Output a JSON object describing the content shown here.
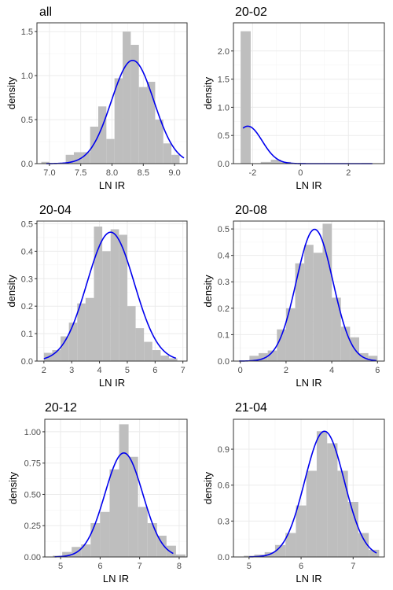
{
  "colors": {
    "bar_fill": "#bebebe",
    "curve": "#0000ee",
    "grid_major": "#ebebeb",
    "grid_minor": "#f4f4f4",
    "panel_border": "#333333",
    "tick_text": "#4d4d4d"
  },
  "chart_data": [
    {
      "type": "bar",
      "title": "all",
      "xlabel": "LN IR",
      "ylabel": "density",
      "xlim": [
        6.8,
        9.2
      ],
      "ylim": [
        0,
        1.6
      ],
      "xticks": [
        7.0,
        7.5,
        8.0,
        8.5,
        9.0
      ],
      "xtick_labels": [
        "7.0",
        "7.5",
        "8.0",
        "8.5",
        "9.0"
      ],
      "yticks": [
        0.0,
        0.5,
        1.0,
        1.5
      ],
      "ytick_labels": [
        "0.0",
        "0.5",
        "1.0",
        "1.5"
      ],
      "bins": [
        {
          "x0": 6.87,
          "x1": 7.0,
          "y": 0.02
        },
        {
          "x0": 7.0,
          "x1": 7.13,
          "y": 0.0
        },
        {
          "x0": 7.13,
          "x1": 7.26,
          "y": 0.0
        },
        {
          "x0": 7.26,
          "x1": 7.39,
          "y": 0.1
        },
        {
          "x0": 7.39,
          "x1": 7.52,
          "y": 0.13
        },
        {
          "x0": 7.52,
          "x1": 7.65,
          "y": 0.13
        },
        {
          "x0": 7.65,
          "x1": 7.78,
          "y": 0.42
        },
        {
          "x0": 7.78,
          "x1": 7.91,
          "y": 0.65
        },
        {
          "x0": 7.91,
          "x1": 8.04,
          "y": 0.28
        },
        {
          "x0": 8.04,
          "x1": 8.17,
          "y": 0.97
        },
        {
          "x0": 8.17,
          "x1": 8.3,
          "y": 1.5
        },
        {
          "x0": 8.3,
          "x1": 8.43,
          "y": 1.35
        },
        {
          "x0": 8.43,
          "x1": 8.56,
          "y": 0.87
        },
        {
          "x0": 8.56,
          "x1": 8.69,
          "y": 0.93
        },
        {
          "x0": 8.69,
          "x1": 8.82,
          "y": 0.5
        },
        {
          "x0": 8.82,
          "x1": 8.95,
          "y": 0.23
        },
        {
          "x0": 8.95,
          "x1": 9.08,
          "y": 0.1
        }
      ],
      "density_curve": {
        "mean": 8.33,
        "sd": 0.34,
        "from": 6.95,
        "to": 9.15
      }
    },
    {
      "type": "bar",
      "title": "20-02",
      "xlabel": "LN IR",
      "ylabel": "density",
      "xlim": [
        -2.8,
        3.5
      ],
      "ylim": [
        0,
        2.5
      ],
      "xticks": [
        -2,
        0,
        2
      ],
      "xtick_labels": [
        "-2",
        "0",
        "2"
      ],
      "yticks": [
        0.0,
        0.5,
        1.0,
        1.5,
        2.0
      ],
      "ytick_labels": [
        "0.0",
        "0.5",
        "1.0",
        "1.5",
        "2.0"
      ],
      "bins": [
        {
          "x0": -2.5,
          "x1": -2.08,
          "y": 2.35
        },
        {
          "x0": -2.08,
          "x1": -1.66,
          "y": 0.0
        },
        {
          "x0": -1.66,
          "x1": -1.24,
          "y": 0.03
        },
        {
          "x0": -1.24,
          "x1": -0.82,
          "y": 0.07
        },
        {
          "x0": -0.82,
          "x1": -0.4,
          "y": 0.03
        },
        {
          "x0": -0.4,
          "x1": 0.02,
          "y": 0.0
        },
        {
          "x0": 0.02,
          "x1": 0.44,
          "y": 0.0
        },
        {
          "x0": 0.44,
          "x1": 0.86,
          "y": 0.0
        },
        {
          "x0": 0.86,
          "x1": 1.28,
          "y": 0.0
        },
        {
          "x0": 1.28,
          "x1": 1.7,
          "y": 0.0
        },
        {
          "x0": 1.7,
          "x1": 2.12,
          "y": 0.0
        },
        {
          "x0": 2.12,
          "x1": 2.54,
          "y": 0.0
        },
        {
          "x0": 2.54,
          "x1": 2.96,
          "y": 0.01
        }
      ],
      "density_curve": {
        "mean": -2.2,
        "sd": 0.6,
        "from": -2.4,
        "to": 3.0
      }
    },
    {
      "type": "bar",
      "title": "20-04",
      "xlabel": "LN IR",
      "ylabel": "density",
      "xlim": [
        1.75,
        7.15
      ],
      "ylim": [
        0,
        0.51
      ],
      "xticks": [
        2,
        3,
        4,
        5,
        6,
        7
      ],
      "xtick_labels": [
        "2",
        "3",
        "4",
        "5",
        "6",
        "7"
      ],
      "yticks": [
        0.0,
        0.1,
        0.2,
        0.3,
        0.4,
        0.5
      ],
      "ytick_labels": [
        "0.0",
        "0.1",
        "0.2",
        "0.3",
        "0.4",
        "0.5"
      ],
      "bins": [
        {
          "x0": 2.0,
          "x1": 2.3,
          "y": 0.03
        },
        {
          "x0": 2.3,
          "x1": 2.6,
          "y": 0.04
        },
        {
          "x0": 2.6,
          "x1": 2.9,
          "y": 0.09
        },
        {
          "x0": 2.9,
          "x1": 3.2,
          "y": 0.14
        },
        {
          "x0": 3.2,
          "x1": 3.5,
          "y": 0.21
        },
        {
          "x0": 3.5,
          "x1": 3.8,
          "y": 0.23
        },
        {
          "x0": 3.8,
          "x1": 4.1,
          "y": 0.49
        },
        {
          "x0": 4.1,
          "x1": 4.4,
          "y": 0.4
        },
        {
          "x0": 4.4,
          "x1": 4.7,
          "y": 0.48
        },
        {
          "x0": 4.7,
          "x1": 5.0,
          "y": 0.46
        },
        {
          "x0": 5.0,
          "x1": 5.3,
          "y": 0.2
        },
        {
          "x0": 5.3,
          "x1": 5.6,
          "y": 0.12
        },
        {
          "x0": 5.6,
          "x1": 5.9,
          "y": 0.07
        },
        {
          "x0": 5.9,
          "x1": 6.2,
          "y": 0.04
        },
        {
          "x0": 6.2,
          "x1": 6.5,
          "y": 0.02
        },
        {
          "x0": 6.5,
          "x1": 6.8,
          "y": 0.01
        }
      ],
      "density_curve": {
        "mean": 4.4,
        "sd": 0.85,
        "from": 2.0,
        "to": 6.75
      }
    },
    {
      "type": "bar",
      "title": "20-08",
      "xlabel": "LN IR",
      "ylabel": "density",
      "xlim": [
        -0.3,
        6.3
      ],
      "ylim": [
        0,
        0.53
      ],
      "xticks": [
        0,
        2,
        4,
        6
      ],
      "xtick_labels": [
        "0",
        "2",
        "4",
        "6"
      ],
      "yticks": [
        0.0,
        0.1,
        0.2,
        0.3,
        0.4,
        0.5
      ],
      "ytick_labels": [
        "0.0",
        "0.1",
        "0.2",
        "0.3",
        "0.4",
        "0.5"
      ],
      "bins": [
        {
          "x0": 0.0,
          "x1": 0.4,
          "y": 0.0
        },
        {
          "x0": 0.4,
          "x1": 0.8,
          "y": 0.02
        },
        {
          "x0": 0.8,
          "x1": 1.2,
          "y": 0.03
        },
        {
          "x0": 1.2,
          "x1": 1.6,
          "y": 0.04
        },
        {
          "x0": 1.6,
          "x1": 2.0,
          "y": 0.12
        },
        {
          "x0": 2.0,
          "x1": 2.4,
          "y": 0.2
        },
        {
          "x0": 2.4,
          "x1": 2.8,
          "y": 0.37
        },
        {
          "x0": 2.8,
          "x1": 3.2,
          "y": 0.44
        },
        {
          "x0": 3.2,
          "x1": 3.6,
          "y": 0.41
        },
        {
          "x0": 3.6,
          "x1": 4.0,
          "y": 0.52
        },
        {
          "x0": 4.0,
          "x1": 4.4,
          "y": 0.24
        },
        {
          "x0": 4.4,
          "x1": 4.8,
          "y": 0.13
        },
        {
          "x0": 4.8,
          "x1": 5.2,
          "y": 0.09
        },
        {
          "x0": 5.2,
          "x1": 5.6,
          "y": 0.03
        },
        {
          "x0": 5.6,
          "x1": 6.0,
          "y": 0.02
        }
      ],
      "density_curve": {
        "mean": 3.25,
        "sd": 0.8,
        "from": -0.05,
        "to": 5.95
      }
    },
    {
      "type": "bar",
      "title": "20-12",
      "xlabel": "LN IR",
      "ylabel": "density",
      "xlim": [
        4.6,
        8.2
      ],
      "ylim": [
        0,
        1.1
      ],
      "xticks": [
        5,
        6,
        7,
        8
      ],
      "xtick_labels": [
        "5",
        "6",
        "7",
        "8"
      ],
      "yticks": [
        0.0,
        0.25,
        0.5,
        0.75,
        1.0
      ],
      "ytick_labels": [
        "0.00",
        "0.25",
        "0.50",
        "0.75",
        "1.00"
      ],
      "bins": [
        {
          "x0": 4.8,
          "x1": 5.04,
          "y": 0.01
        },
        {
          "x0": 5.04,
          "x1": 5.28,
          "y": 0.04
        },
        {
          "x0": 5.28,
          "x1": 5.52,
          "y": 0.08
        },
        {
          "x0": 5.52,
          "x1": 5.76,
          "y": 0.1
        },
        {
          "x0": 5.76,
          "x1": 6.0,
          "y": 0.27
        },
        {
          "x0": 6.0,
          "x1": 6.24,
          "y": 0.36
        },
        {
          "x0": 6.24,
          "x1": 6.48,
          "y": 0.7
        },
        {
          "x0": 6.48,
          "x1": 6.72,
          "y": 1.06
        },
        {
          "x0": 6.72,
          "x1": 6.96,
          "y": 0.8
        },
        {
          "x0": 6.96,
          "x1": 7.2,
          "y": 0.4
        },
        {
          "x0": 7.2,
          "x1": 7.44,
          "y": 0.27
        },
        {
          "x0": 7.44,
          "x1": 7.68,
          "y": 0.17
        },
        {
          "x0": 7.68,
          "x1": 7.92,
          "y": 0.09
        },
        {
          "x0": 7.92,
          "x1": 8.16,
          "y": 0.02
        }
      ],
      "density_curve": {
        "mean": 6.6,
        "sd": 0.48,
        "from": 4.85,
        "to": 7.85
      }
    },
    {
      "type": "bar",
      "title": "21-04",
      "xlabel": "LN IR",
      "ylabel": "density",
      "xlim": [
        4.7,
        7.6
      ],
      "ylim": [
        0,
        1.15
      ],
      "xticks": [
        5,
        6,
        7
      ],
      "xtick_labels": [
        "5",
        "6",
        "7"
      ],
      "yticks": [
        0.0,
        0.3,
        0.6,
        0.9
      ],
      "ytick_labels": [
        "0.0",
        "0.3",
        "0.6",
        "0.9"
      ],
      "bins": [
        {
          "x0": 4.9,
          "x1": 5.1,
          "y": 0.01
        },
        {
          "x0": 5.1,
          "x1": 5.3,
          "y": 0.02
        },
        {
          "x0": 5.3,
          "x1": 5.5,
          "y": 0.04
        },
        {
          "x0": 5.5,
          "x1": 5.7,
          "y": 0.1
        },
        {
          "x0": 5.7,
          "x1": 5.9,
          "y": 0.2
        },
        {
          "x0": 5.9,
          "x1": 6.1,
          "y": 0.43
        },
        {
          "x0": 6.1,
          "x1": 6.3,
          "y": 0.72
        },
        {
          "x0": 6.3,
          "x1": 6.5,
          "y": 1.05
        },
        {
          "x0": 6.5,
          "x1": 6.7,
          "y": 0.95
        },
        {
          "x0": 6.7,
          "x1": 6.9,
          "y": 0.72
        },
        {
          "x0": 6.9,
          "x1": 7.1,
          "y": 0.46
        },
        {
          "x0": 7.1,
          "x1": 7.3,
          "y": 0.2
        },
        {
          "x0": 7.3,
          "x1": 7.5,
          "y": 0.06
        }
      ],
      "density_curve": {
        "mean": 6.45,
        "sd": 0.38,
        "from": 5.0,
        "to": 7.45
      }
    }
  ]
}
